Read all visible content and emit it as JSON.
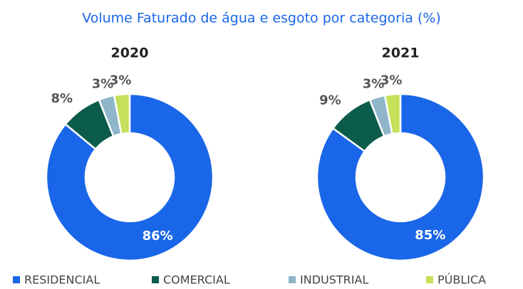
{
  "title": "Volume Faturado de água e esgoto por categoria (%)",
  "chart_data": [
    {
      "type": "pie",
      "donut": true,
      "title": "2020",
      "categories": [
        "RESIDENCIAL",
        "COMERCIAL",
        "INDUSTRIAL",
        "PÚBLICA"
      ],
      "values": [
        86,
        8,
        3,
        3
      ],
      "value_labels": [
        "86%",
        "8%",
        "3%",
        "3%"
      ],
      "colors": [
        "#1a66e8",
        "#0b5c4a",
        "#8fb5c9",
        "#c5e05a"
      ]
    },
    {
      "type": "pie",
      "donut": true,
      "title": "2021",
      "categories": [
        "RESIDENCIAL",
        "COMERCIAL",
        "INDUSTRIAL",
        "PÚBLICA"
      ],
      "values": [
        85,
        9,
        3,
        3
      ],
      "value_labels": [
        "85%",
        "9%",
        "3%",
        "3%"
      ],
      "colors": [
        "#1a66e8",
        "#0b5c4a",
        "#8fb5c9",
        "#c5e05a"
      ]
    }
  ]
}
